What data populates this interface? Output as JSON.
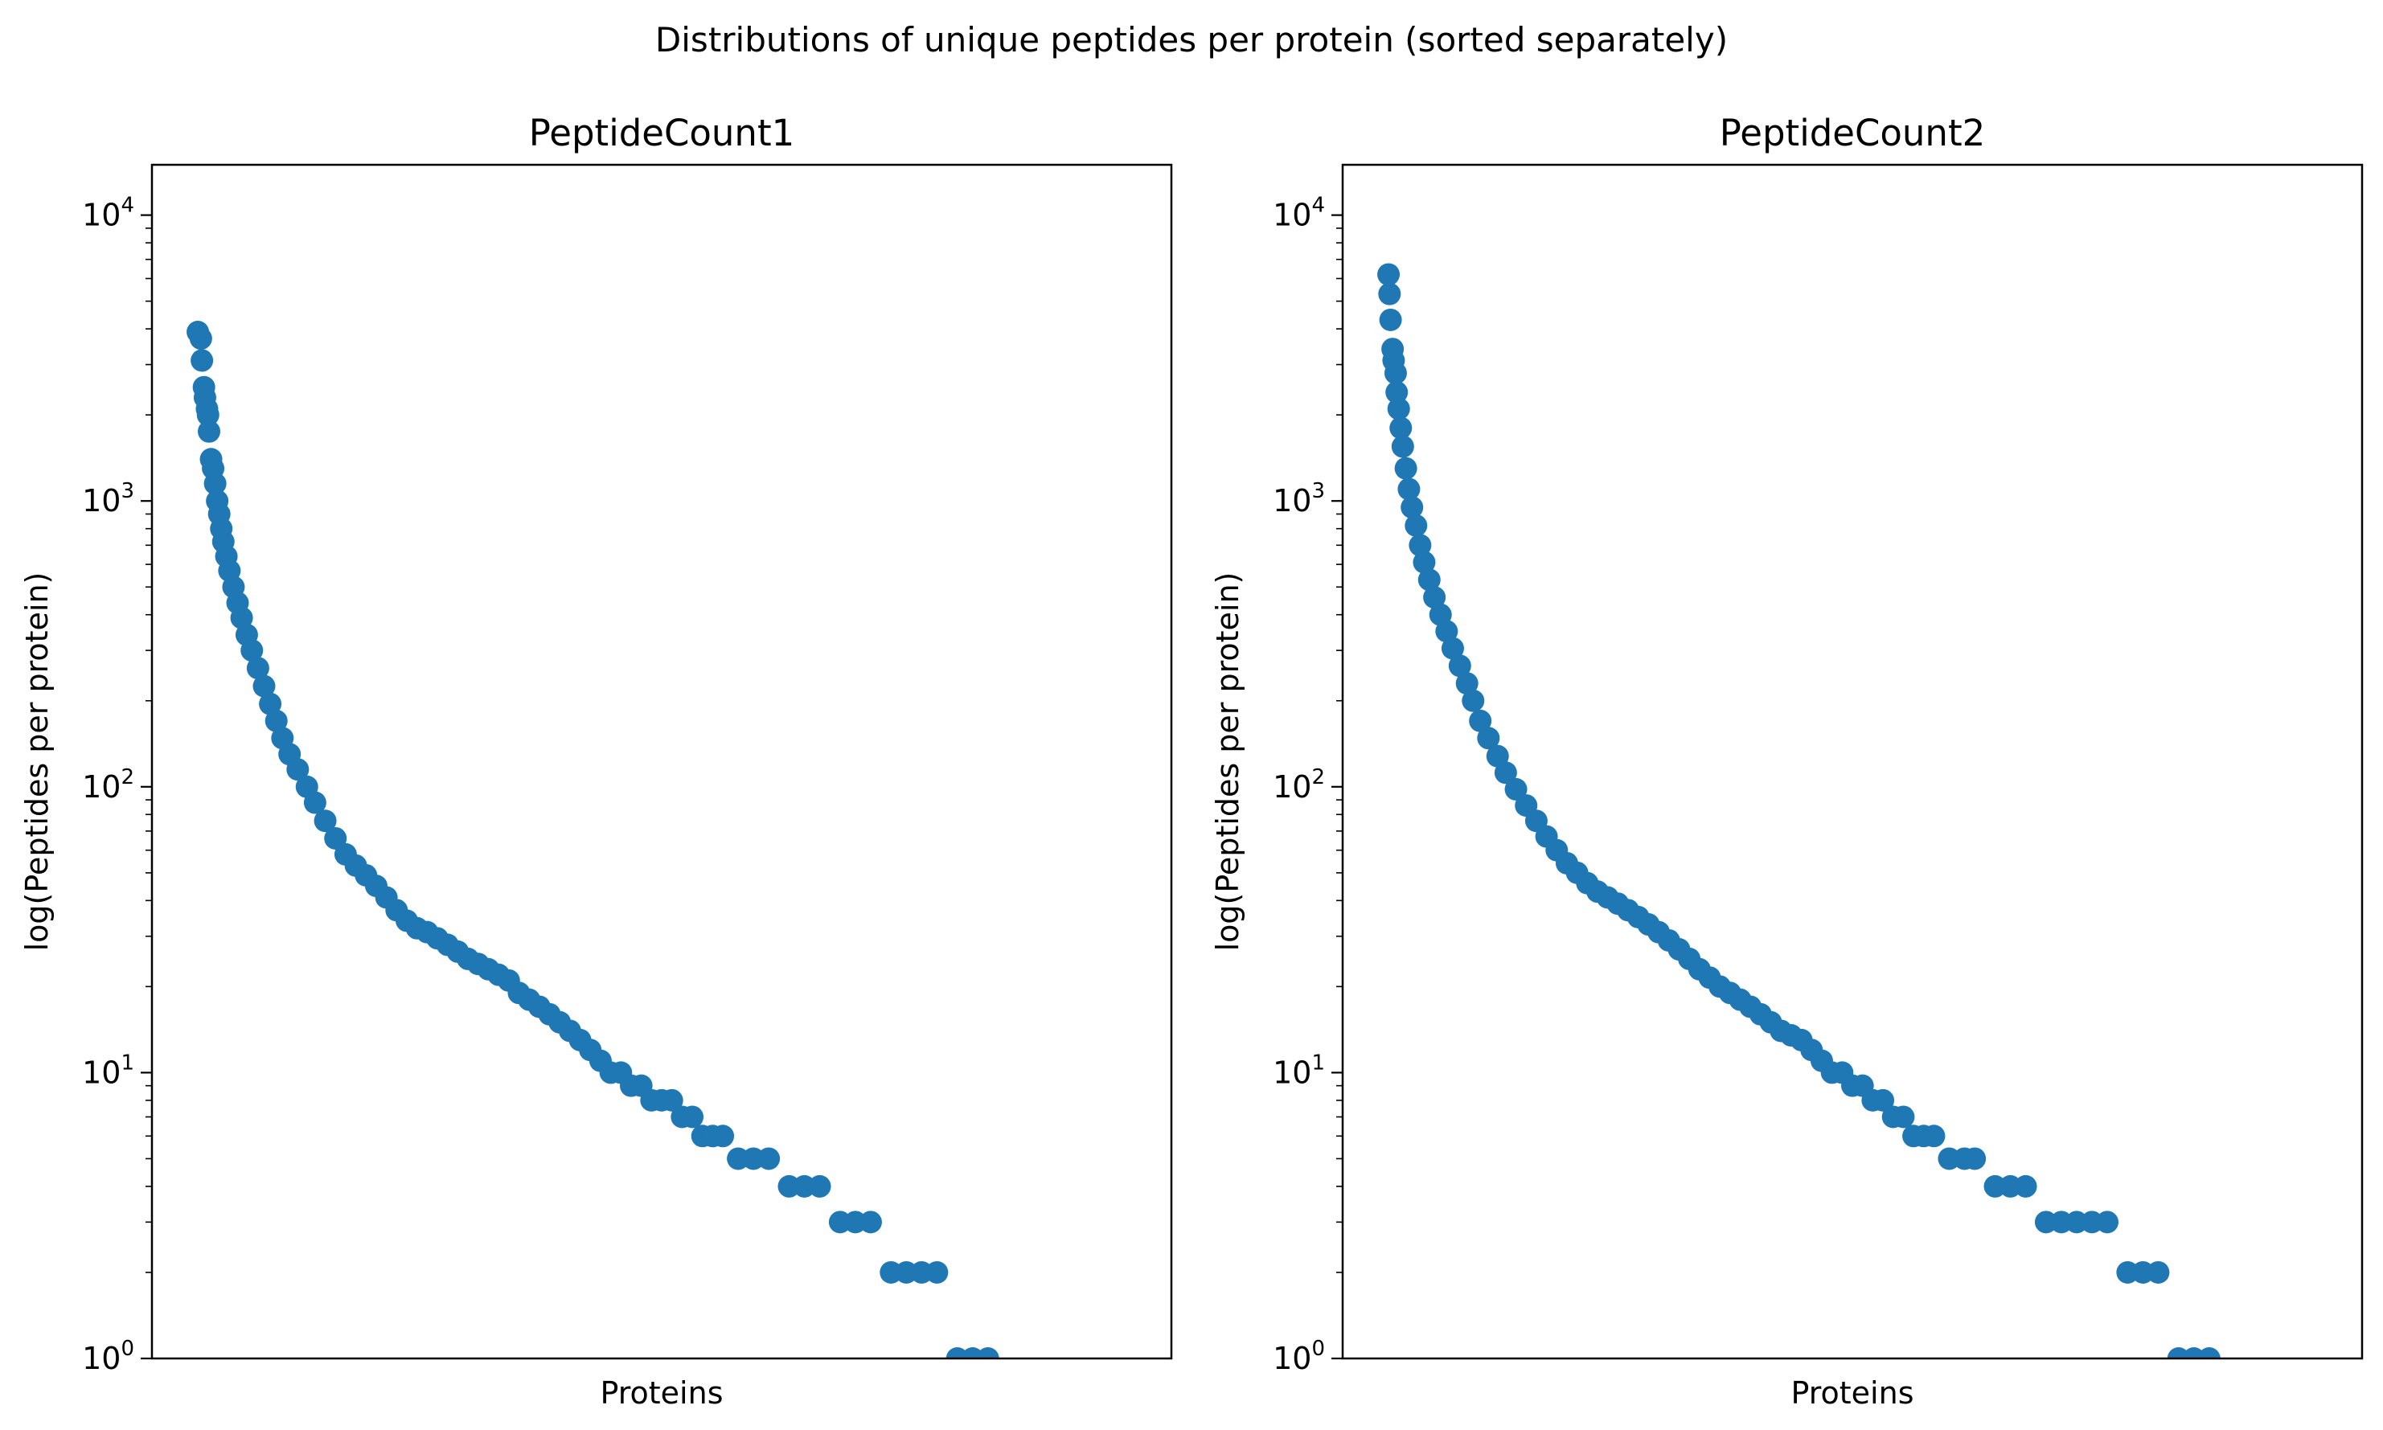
{
  "figure": {
    "suptitle": "Distributions of unique peptides per protein (sorted separately)"
  },
  "chart_data": [
    {
      "type": "scatter",
      "title": "PeptideCount1",
      "xlabel": "Proteins",
      "ylabel": "log(Peptides per protein)",
      "yscale": "log",
      "ylim": [
        1,
        15000
      ],
      "xlim": [
        0,
        1
      ],
      "yticks": [
        {
          "base": "10",
          "exp": "0",
          "value": 1
        },
        {
          "base": "10",
          "exp": "1",
          "value": 10
        },
        {
          "base": "10",
          "exp": "2",
          "value": 100
        },
        {
          "base": "10",
          "exp": "3",
          "value": 1000
        },
        {
          "base": "10",
          "exp": "4",
          "value": 10000
        }
      ],
      "xticks": [],
      "marker_color": "#1f77b4",
      "series": [
        {
          "points": [
            [
              0.045,
              3900
            ],
            [
              0.048,
              3700
            ],
            [
              0.049,
              3100
            ],
            [
              0.051,
              2500
            ],
            [
              0.052,
              2300
            ],
            [
              0.054,
              2100
            ],
            [
              0.055,
              2000
            ],
            [
              0.056,
              1750
            ],
            [
              0.058,
              1400
            ],
            [
              0.06,
              1300
            ],
            [
              0.062,
              1150
            ],
            [
              0.064,
              1000
            ],
            [
              0.066,
              900
            ],
            [
              0.068,
              800
            ],
            [
              0.07,
              720
            ],
            [
              0.073,
              640
            ],
            [
              0.076,
              570
            ],
            [
              0.08,
              500
            ],
            [
              0.084,
              440
            ],
            [
              0.088,
              390
            ],
            [
              0.093,
              340
            ],
            [
              0.098,
              300
            ],
            [
              0.104,
              260
            ],
            [
              0.11,
              225
            ],
            [
              0.116,
              195
            ],
            [
              0.122,
              170
            ],
            [
              0.128,
              148
            ],
            [
              0.135,
              130
            ],
            [
              0.143,
              115
            ],
            [
              0.152,
              100
            ],
            [
              0.16,
              88
            ],
            [
              0.17,
              76
            ],
            [
              0.18,
              66
            ],
            [
              0.19,
              58
            ],
            [
              0.2,
              53
            ],
            [
              0.21,
              49
            ],
            [
              0.22,
              45
            ],
            [
              0.23,
              41
            ],
            [
              0.24,
              37
            ],
            [
              0.25,
              34
            ],
            [
              0.26,
              32
            ],
            [
              0.27,
              31
            ],
            [
              0.28,
              29.5
            ],
            [
              0.29,
              28
            ],
            [
              0.3,
              26.5
            ],
            [
              0.31,
              25
            ],
            [
              0.32,
              24
            ],
            [
              0.33,
              23
            ],
            [
              0.34,
              22
            ],
            [
              0.35,
              21
            ],
            [
              0.36,
              19
            ],
            [
              0.37,
              18
            ],
            [
              0.38,
              17
            ],
            [
              0.39,
              16
            ],
            [
              0.4,
              15
            ],
            [
              0.41,
              14
            ],
            [
              0.42,
              13
            ],
            [
              0.43,
              12
            ],
            [
              0.44,
              11
            ],
            [
              0.45,
              10
            ],
            [
              0.46,
              10
            ],
            [
              0.47,
              9
            ],
            [
              0.48,
              9
            ],
            [
              0.49,
              8
            ],
            [
              0.5,
              8
            ],
            [
              0.51,
              8
            ],
            [
              0.52,
              7
            ],
            [
              0.53,
              7
            ],
            [
              0.54,
              6
            ],
            [
              0.55,
              6
            ],
            [
              0.56,
              6
            ],
            [
              0.575,
              5
            ],
            [
              0.59,
              5
            ],
            [
              0.605,
              5
            ],
            [
              0.625,
              4
            ],
            [
              0.64,
              4
            ],
            [
              0.655,
              4
            ],
            [
              0.675,
              3
            ],
            [
              0.69,
              3
            ],
            [
              0.705,
              3
            ],
            [
              0.725,
              2
            ],
            [
              0.74,
              2
            ],
            [
              0.755,
              2
            ],
            [
              0.77,
              2
            ],
            [
              0.79,
              1
            ],
            [
              0.805,
              1
            ],
            [
              0.82,
              1
            ]
          ]
        }
      ]
    },
    {
      "type": "scatter",
      "title": "PeptideCount2",
      "xlabel": "Proteins",
      "ylabel": "log(Peptides per protein)",
      "yscale": "log",
      "ylim": [
        1,
        15000
      ],
      "xlim": [
        0,
        1
      ],
      "yticks": [
        {
          "base": "10",
          "exp": "0",
          "value": 1
        },
        {
          "base": "10",
          "exp": "1",
          "value": 10
        },
        {
          "base": "10",
          "exp": "2",
          "value": 100
        },
        {
          "base": "10",
          "exp": "3",
          "value": 1000
        },
        {
          "base": "10",
          "exp": "4",
          "value": 10000
        }
      ],
      "xticks": [],
      "marker_color": "#1f77b4",
      "series": [
        {
          "points": [
            [
              0.045,
              6200
            ],
            [
              0.046,
              5300
            ],
            [
              0.047,
              4300
            ],
            [
              0.049,
              3400
            ],
            [
              0.05,
              3100
            ],
            [
              0.052,
              2800
            ],
            [
              0.053,
              2400
            ],
            [
              0.055,
              2100
            ],
            [
              0.057,
              1800
            ],
            [
              0.059,
              1550
            ],
            [
              0.062,
              1300
            ],
            [
              0.065,
              1100
            ],
            [
              0.068,
              950
            ],
            [
              0.072,
              820
            ],
            [
              0.076,
              700
            ],
            [
              0.08,
              610
            ],
            [
              0.085,
              530
            ],
            [
              0.09,
              460
            ],
            [
              0.096,
              400
            ],
            [
              0.102,
              350
            ],
            [
              0.108,
              305
            ],
            [
              0.115,
              265
            ],
            [
              0.122,
              230
            ],
            [
              0.128,
              200
            ],
            [
              0.135,
              170
            ],
            [
              0.143,
              148
            ],
            [
              0.152,
              128
            ],
            [
              0.16,
              112
            ],
            [
              0.17,
              98
            ],
            [
              0.18,
              86
            ],
            [
              0.19,
              76
            ],
            [
              0.2,
              67
            ],
            [
              0.21,
              60
            ],
            [
              0.22,
              54
            ],
            [
              0.23,
              50
            ],
            [
              0.24,
              46
            ],
            [
              0.25,
              43
            ],
            [
              0.26,
              41
            ],
            [
              0.27,
              39
            ],
            [
              0.28,
              37
            ],
            [
              0.29,
              35
            ],
            [
              0.3,
              33
            ],
            [
              0.31,
              31
            ],
            [
              0.32,
              29
            ],
            [
              0.33,
              27
            ],
            [
              0.34,
              25
            ],
            [
              0.35,
              23
            ],
            [
              0.36,
              21.5
            ],
            [
              0.37,
              20
            ],
            [
              0.38,
              19
            ],
            [
              0.39,
              18
            ],
            [
              0.4,
              17
            ],
            [
              0.41,
              16
            ],
            [
              0.42,
              15
            ],
            [
              0.43,
              14
            ],
            [
              0.44,
              13.5
            ],
            [
              0.45,
              13
            ],
            [
              0.46,
              12
            ],
            [
              0.47,
              11
            ],
            [
              0.48,
              10
            ],
            [
              0.49,
              10
            ],
            [
              0.5,
              9
            ],
            [
              0.51,
              9
            ],
            [
              0.52,
              8
            ],
            [
              0.53,
              8
            ],
            [
              0.54,
              7
            ],
            [
              0.55,
              7
            ],
            [
              0.56,
              6
            ],
            [
              0.57,
              6
            ],
            [
              0.58,
              6
            ],
            [
              0.595,
              5
            ],
            [
              0.61,
              5
            ],
            [
              0.62,
              5
            ],
            [
              0.64,
              4
            ],
            [
              0.655,
              4
            ],
            [
              0.67,
              4
            ],
            [
              0.69,
              3
            ],
            [
              0.705,
              3
            ],
            [
              0.72,
              3
            ],
            [
              0.735,
              3
            ],
            [
              0.75,
              3
            ],
            [
              0.77,
              2
            ],
            [
              0.785,
              2
            ],
            [
              0.8,
              2
            ],
            [
              0.82,
              1
            ],
            [
              0.835,
              1
            ],
            [
              0.85,
              1
            ]
          ]
        }
      ]
    }
  ]
}
